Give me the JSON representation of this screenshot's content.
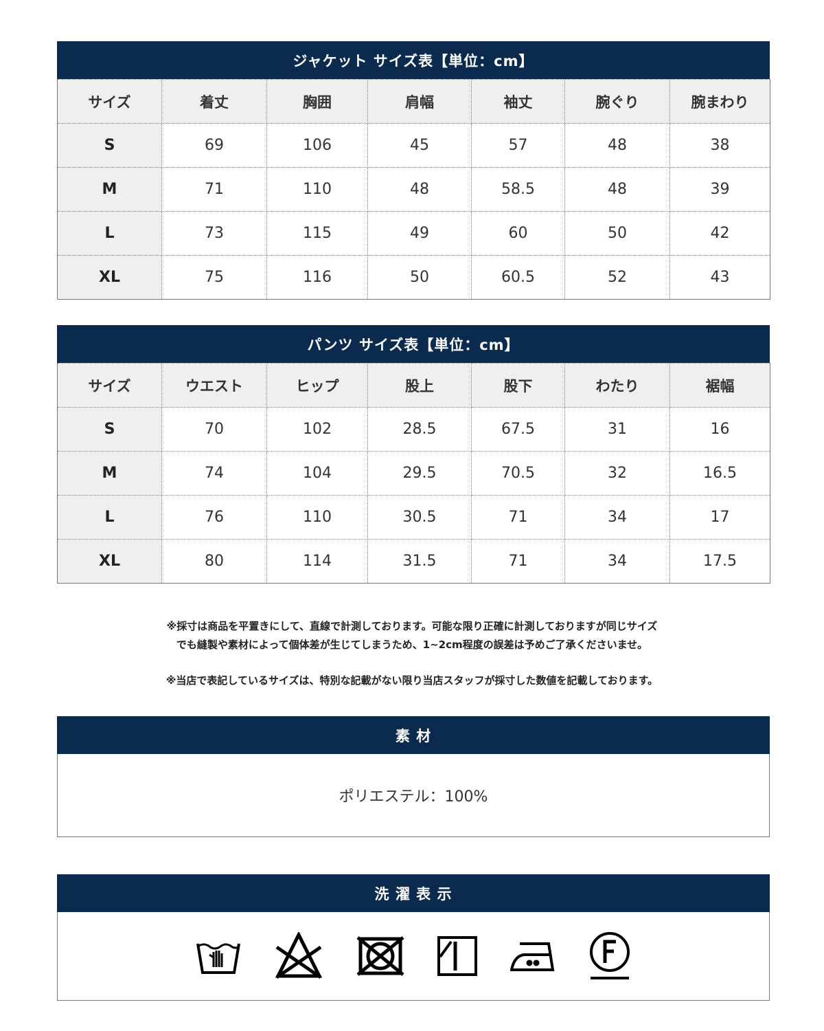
{
  "jacket": {
    "title": "ジャケット サイズ表【単位：cm】",
    "headers": [
      "サイズ",
      "着丈",
      "胸囲",
      "肩幅",
      "袖丈",
      "腕ぐり",
      "腕まわり"
    ],
    "rows": [
      [
        "S",
        "69",
        "106",
        "45",
        "57",
        "48",
        "38"
      ],
      [
        "M",
        "71",
        "110",
        "48",
        "58.5",
        "48",
        "39"
      ],
      [
        "L",
        "73",
        "115",
        "49",
        "60",
        "50",
        "42"
      ],
      [
        "XL",
        "75",
        "116",
        "50",
        "60.5",
        "52",
        "43"
      ]
    ]
  },
  "pants": {
    "title": "パンツ サイズ表【単位：cm】",
    "headers": [
      "サイズ",
      "ウエスト",
      "ヒップ",
      "股上",
      "股下",
      "わたり",
      "裾幅"
    ],
    "rows": [
      [
        "S",
        "70",
        "102",
        "28.5",
        "67.5",
        "31",
        "16"
      ],
      [
        "M",
        "74",
        "104",
        "29.5",
        "70.5",
        "32",
        "16.5"
      ],
      [
        "L",
        "76",
        "110",
        "30.5",
        "71",
        "34",
        "17"
      ],
      [
        "XL",
        "80",
        "114",
        "31.5",
        "71",
        "34",
        "17.5"
      ]
    ]
  },
  "notes": {
    "line1": "※採寸は商品を平置きにして、直線で計測しております。可能な限り正確に計測しておりますが同じサイズ",
    "line2": "でも縫製や素材によって個体差が生じてしまうため、1~2cm程度の誤差は予めご了承くださいませ。",
    "line3": "※当店で表記しているサイズは、特別な記載がない限り当店スタッフが採寸した数値を記載しております。"
  },
  "material": {
    "title": "素 材",
    "value": "ポリエステル：100%"
  },
  "care": {
    "title": "洗 濯 表 示",
    "icons": [
      "hand-wash-icon",
      "no-bleach-icon",
      "no-tumble-dry-icon",
      "line-dry-shade-icon",
      "iron-medium-icon",
      "dry-clean-f-icon"
    ]
  },
  "colors": {
    "header_bar": "#0b2b4e",
    "label_bg": "#efefef"
  }
}
